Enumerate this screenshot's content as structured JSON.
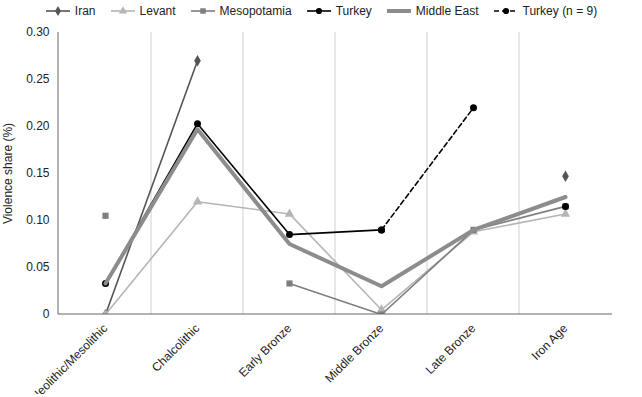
{
  "chart_data": {
    "type": "line",
    "categories": [
      "Neolithic/Mesolithic",
      "Chalcolithic",
      "Early Bronze",
      "Middle Bronze",
      "Late Bronze",
      "Iron Age"
    ],
    "y_label": "Violence share (%)",
    "ylim": [
      0,
      0.3
    ],
    "yticks": [
      0,
      0.05,
      {
        "value": 0.1,
        "label": "0.10"
      },
      0.15,
      {
        "value": 0.2,
        "label": "0.20"
      },
      0.25,
      {
        "value": 0.3,
        "label": "0.30"
      }
    ],
    "grid": true,
    "legend": "top",
    "series": [
      {
        "name": "Iran",
        "color": "#555555",
        "marker": "diamond",
        "line_style": "solid",
        "values": [
          0,
          0.27,
          null,
          null,
          null,
          0.147
        ]
      },
      {
        "name": "Levant",
        "color": "#b5b5b5",
        "marker": "triangle",
        "line_style": "solid",
        "values": [
          0,
          0.12,
          0.107,
          0.005,
          0.088,
          0.107
        ]
      },
      {
        "name": "Mesopotamia",
        "color": "#7f7f7f",
        "marker": "square",
        "line_style": "solid",
        "values": [
          0.105,
          null,
          0.033,
          0,
          0.09,
          0.115
        ]
      },
      {
        "name": "Turkey",
        "color": "#000000",
        "marker": "circle",
        "line_style": "solid",
        "values": [
          0.033,
          0.203,
          0.085,
          0.09,
          null,
          0.115
        ]
      },
      {
        "name": "Middle East",
        "color": "#8c8c8c",
        "marker": "none",
        "line_style": "thick",
        "values": [
          0.033,
          0.197,
          0.075,
          0.03,
          0.09,
          0.125
        ]
      },
      {
        "name": "Turkey (n = 9)",
        "color": "#000000",
        "marker": "circle",
        "line_style": "dashed",
        "values": [
          null,
          null,
          null,
          0.09,
          0.22,
          null
        ]
      }
    ]
  }
}
